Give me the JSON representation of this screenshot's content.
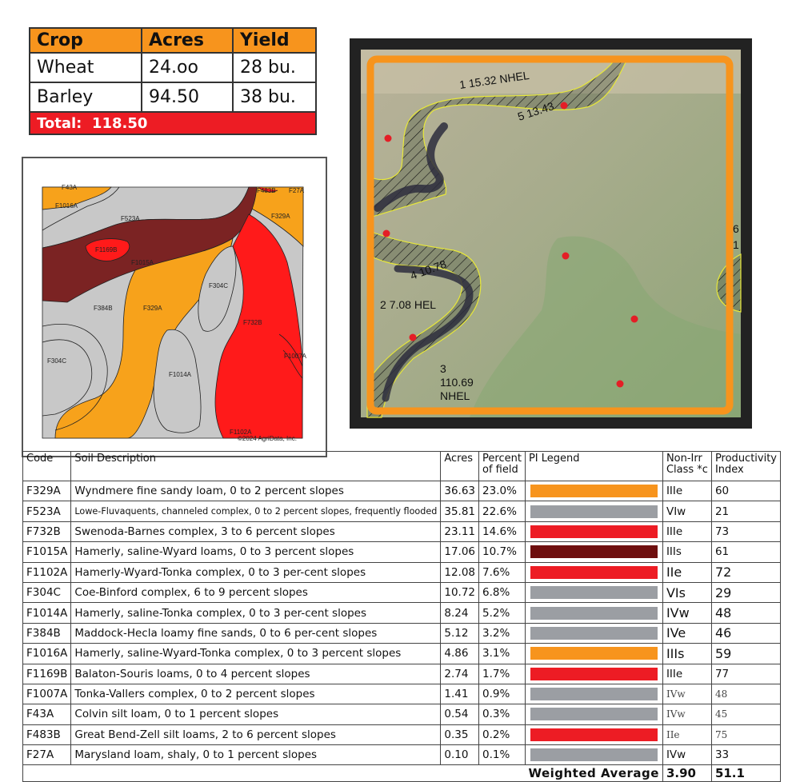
{
  "crop_table": {
    "headers": [
      "Crop",
      "Acres",
      "Yield"
    ],
    "rows": [
      {
        "crop": "Wheat",
        "acres": "24.oo",
        "yield": "28 bu."
      },
      {
        "crop": "Barley",
        "acres": "94.50",
        "yield": "38 bu."
      }
    ],
    "total_label": "Total:",
    "total_value": "118.50"
  },
  "soil_map": {
    "labels": [
      "F43A",
      "F1016A",
      "F523A",
      "F329A",
      "F1169B",
      "F1015A",
      "F304C",
      "F384B",
      "F732B",
      "F1007A",
      "F1014A",
      "F483B",
      "F27A",
      "F1102A"
    ],
    "copyright": "©2024 AgriData, Inc.",
    "colors": {
      "orange": "#f7a21b",
      "gray": "#c8c8c8",
      "red": "#ff1a1a",
      "darkred": "#7b2323"
    }
  },
  "aerial": {
    "field_labels": [
      {
        "num": "1",
        "acres": "15.32",
        "status": "NHEL"
      },
      {
        "num": "5",
        "acres": "13.43",
        "status": ""
      },
      {
        "num": "4",
        "acres": "10.78",
        "status": ""
      },
      {
        "num": "2",
        "acres": "7.08",
        "status": "HEL"
      },
      {
        "num": "3",
        "acres": "110.69",
        "status": "NHEL"
      }
    ],
    "edge_labels": [
      "6",
      "1"
    ],
    "border_color": "#f7941d"
  },
  "soil_table": {
    "headers": {
      "code": "Code",
      "description": "Soil Description",
      "acres": "Acres",
      "percent": [
        "Percent",
        "of field"
      ],
      "pi_legend": "PI Legend",
      "nonirr": [
        "Non-Irr",
        "Class *c"
      ],
      "productivity": [
        "Productivity",
        "Index"
      ]
    },
    "rows": [
      {
        "code": "F329A",
        "description": "Wyndmere fine sandy loam, 0 to 2 percent slopes",
        "acres": "36.63",
        "percent": "23.0%",
        "pi_color": "#f7941d",
        "class": "IIIe",
        "pi": "60"
      },
      {
        "code": "F523A",
        "description": "Lowe-Fluvaquents, channeled complex, 0 to 2 percent slopes, frequently flooded",
        "acres": "35.81",
        "percent": "22.6%",
        "pi_color": "#9b9ea3",
        "class": "VIw",
        "pi": "21"
      },
      {
        "code": "F732B",
        "description": "Swenoda-Barnes complex, 3 to 6 percent slopes",
        "acres": "23.11",
        "percent": "14.6%",
        "pi_color": "#ed1c24",
        "class": "IIIe",
        "pi": "73"
      },
      {
        "code": "F1015A",
        "description": "Hamerly, saline-Wyard loams, 0 to 3 percent slopes",
        "acres": "17.06",
        "percent": "10.7%",
        "pi_color": "#6e0e0e",
        "class": "IIIs",
        "pi": "61"
      },
      {
        "code": "F1102A",
        "description": "Hamerly-Wyard-Tonka complex, 0 to 3 per-cent slopes",
        "acres": "12.08",
        "percent": "7.6%",
        "pi_color": "#ed1c24",
        "class": "IIe",
        "pi": "72"
      },
      {
        "code": "F304C",
        "description": "Coe-Binford complex, 6 to 9 percent slopes",
        "acres": "10.72",
        "percent": "6.8%",
        "pi_color": "#9b9ea3",
        "class": "VIs",
        "pi": "29"
      },
      {
        "code": "F1014A",
        "description": "Hamerly, saline-Tonka complex, 0 to 3 per-cent slopes",
        "acres": "8.24",
        "percent": "5.2%",
        "pi_color": "#9b9ea3",
        "class": "IVw",
        "pi": "48"
      },
      {
        "code": "F384B",
        "description": "Maddock-Hecla loamy fine sands, 0 to 6 per-cent slopes",
        "acres": "5.12",
        "percent": "3.2%",
        "pi_color": "#9b9ea3",
        "class": "IVe",
        "pi": "46"
      },
      {
        "code": "F1016A",
        "description": "Hamerly, saline-Wyard-Tonka complex, 0 to 3 percent slopes",
        "acres": "4.86",
        "percent": "3.1%",
        "pi_color": "#f7941d",
        "class": "IIIs",
        "pi": "59"
      },
      {
        "code": "F1169B",
        "description": "Balaton-Souris loams, 0 to 4 percent slopes",
        "acres": "2.74",
        "percent": "1.7%",
        "pi_color": "#ed1c24",
        "class": "IIIe",
        "pi": "77"
      },
      {
        "code": "F1007A",
        "description": "Tonka-Vallers complex, 0 to 2 percent slopes",
        "acres": "1.41",
        "percent": "0.9%",
        "pi_color": "#9b9ea3",
        "class": "IVw",
        "pi": "48"
      },
      {
        "code": "F43A",
        "description": "Colvin silt loam, 0 to 1 percent slopes",
        "acres": "0.54",
        "percent": "0.3%",
        "pi_color": "#9b9ea3",
        "class": "IVw",
        "pi": "45"
      },
      {
        "code": "F483B",
        "description": "Great Bend-Zell silt loams, 2 to 6 percent slopes",
        "acres": "0.35",
        "percent": "0.2%",
        "pi_color": "#ed1c24",
        "class": "IIe",
        "pi": "75"
      },
      {
        "code": "F27A",
        "description": "Marysland loam, shaly, 0 to 1 percent slopes",
        "acres": "0.10",
        "percent": "0.1%",
        "pi_color": "#9b9ea3",
        "class": "IVw",
        "pi": "33"
      }
    ],
    "weighted_average_label": "Weighted Average",
    "weighted_class": "3.90",
    "weighted_pi": "51.1"
  }
}
